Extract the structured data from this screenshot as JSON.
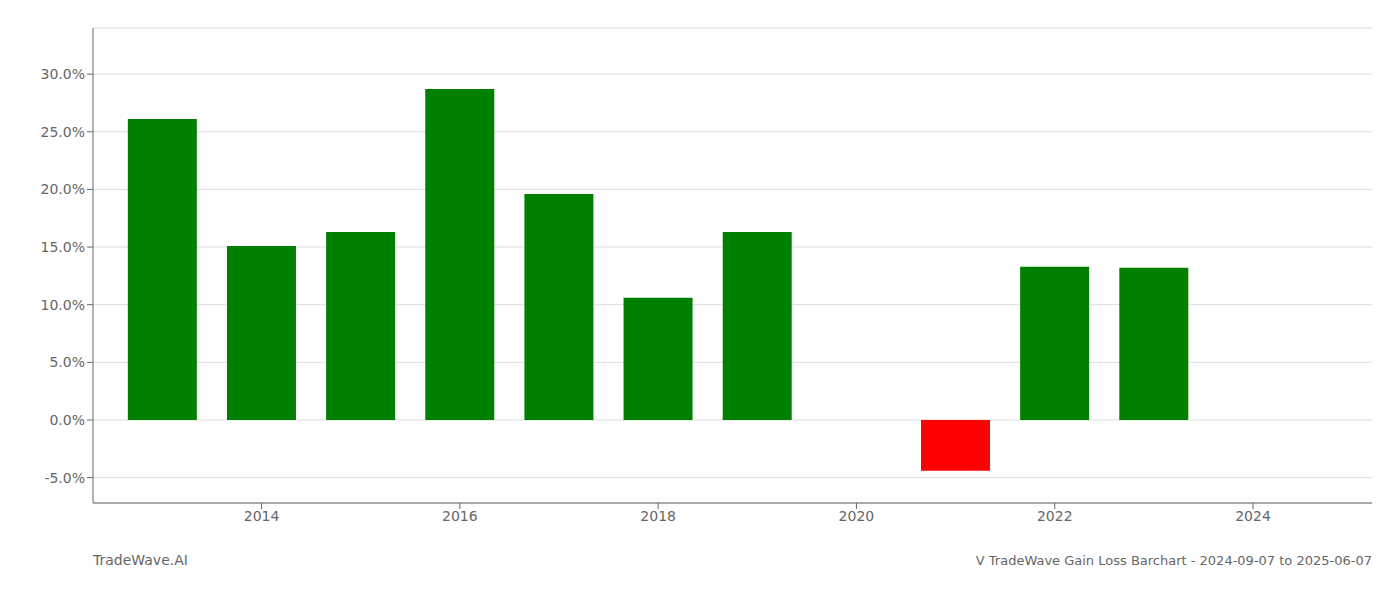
{
  "chart_data": {
    "type": "bar",
    "title": "V TradeWave Gain Loss Barchart - 2024-09-07 to 2025-06-07",
    "annotations": [
      "TradeWave.AI"
    ],
    "x": [
      2013,
      2014,
      2015,
      2016,
      2017,
      2018,
      2019,
      2021,
      2022,
      2023
    ],
    "values": [
      0.261,
      0.151,
      0.163,
      0.287,
      0.196,
      0.106,
      0.163,
      -0.044,
      0.133,
      0.132
    ],
    "colors": [
      "#008000",
      "#008000",
      "#008000",
      "#008000",
      "#008000",
      "#008000",
      "#008000",
      "#ff0000",
      "#008000",
      "#008000"
    ],
    "xlim": [
      2012.3,
      2025.2
    ],
    "xticks": [
      2014,
      2016,
      2018,
      2020,
      2022,
      2024
    ],
    "ylim": [
      -0.072,
      0.34
    ],
    "yticks": [
      {
        "value": -0.05,
        "label": "-5.0%"
      },
      {
        "value": 0.0,
        "label": "0.0%"
      },
      {
        "value": 0.05,
        "label": "5.0%"
      },
      {
        "value": 0.1,
        "label": "10.0%"
      },
      {
        "value": 0.15,
        "label": "15.0%"
      },
      {
        "value": 0.2,
        "label": "20.0%"
      },
      {
        "value": 0.25,
        "label": "25.0%"
      },
      {
        "value": 0.3,
        "label": "30.0%"
      }
    ],
    "grid": true
  }
}
